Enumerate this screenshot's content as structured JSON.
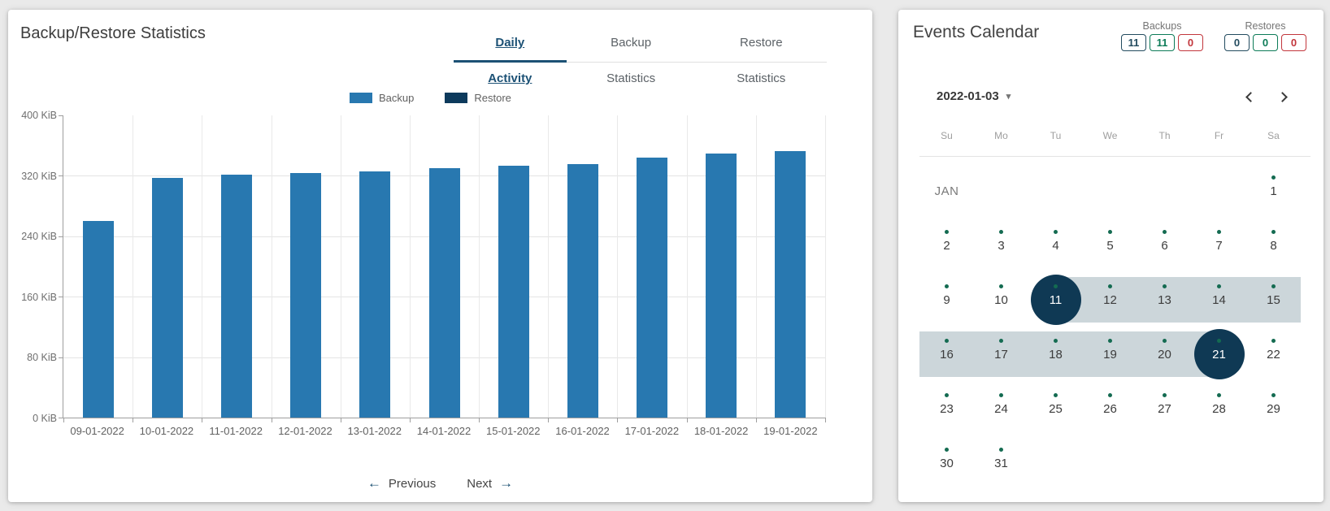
{
  "page_background": "#eaeaea",
  "left_panel": {
    "title": "Backup/Restore Statistics",
    "tabs": [
      {
        "label": "Daily Activity",
        "active": true
      },
      {
        "label": "Backup Statistics",
        "active": false
      },
      {
        "label": "Restore Statistics",
        "active": false
      }
    ],
    "pagination": {
      "previous": "Previous",
      "next": "Next"
    }
  },
  "chart_data": {
    "type": "bar",
    "title": "Daily Activity",
    "categories": [
      "09-01-2022",
      "10-01-2022",
      "11-01-2022",
      "12-01-2022",
      "13-01-2022",
      "14-01-2022",
      "15-01-2022",
      "16-01-2022",
      "17-01-2022",
      "18-01-2022",
      "19-01-2022"
    ],
    "series": [
      {
        "name": "Backup",
        "color": "#2878b0",
        "values": [
          260,
          317,
          321,
          324,
          326,
          330,
          333,
          336,
          344,
          350,
          353
        ]
      },
      {
        "name": "Restore",
        "color": "#0d3a5c",
        "values": [
          0,
          0,
          0,
          0,
          0,
          0,
          0,
          0,
          0,
          0,
          0
        ]
      }
    ],
    "unit": "KiB",
    "y_ticks": [
      "400 KiB",
      "320 KiB",
      "240 KiB",
      "160 KiB",
      "80 KiB",
      "0 KiB"
    ],
    "ylim": [
      0,
      400
    ],
    "grid": true,
    "legend_position": "top"
  },
  "right_panel": {
    "title": "Events Calendar",
    "counters": [
      {
        "group": "Backups",
        "badges": [
          {
            "value": "11",
            "color": "#234b5f"
          },
          {
            "value": "11",
            "color": "#0c7b57"
          },
          {
            "value": "0",
            "color": "#c2363c"
          }
        ]
      },
      {
        "group": "Restores",
        "badges": [
          {
            "value": "0",
            "color": "#234b5f"
          },
          {
            "value": "0",
            "color": "#0c7b57"
          },
          {
            "value": "0",
            "color": "#c2363c"
          }
        ]
      }
    ],
    "date_selector": {
      "value": "2022-01-03"
    },
    "calendar": {
      "month_label": "JAN",
      "weekdays": [
        "Su",
        "Mo",
        "Tu",
        "We",
        "Th",
        "Fr",
        "Sa"
      ],
      "selected_range": {
        "start": "2022-01-11",
        "end": "2022-01-21"
      },
      "rows": [
        [
          {
            "type": "month",
            "label": "JAN"
          },
          {
            "type": "empty"
          },
          {
            "type": "empty"
          },
          {
            "type": "empty"
          },
          {
            "type": "empty"
          },
          {
            "type": "empty"
          },
          {
            "type": "day",
            "day": 1,
            "dot": true,
            "state": "plain"
          }
        ],
        [
          {
            "type": "day",
            "day": 2,
            "dot": true,
            "state": "plain"
          },
          {
            "type": "day",
            "day": 3,
            "dot": true,
            "state": "plain"
          },
          {
            "type": "day",
            "day": 4,
            "dot": true,
            "state": "plain"
          },
          {
            "type": "day",
            "day": 5,
            "dot": true,
            "state": "plain"
          },
          {
            "type": "day",
            "day": 6,
            "dot": true,
            "state": "plain"
          },
          {
            "type": "day",
            "day": 7,
            "dot": true,
            "state": "plain"
          },
          {
            "type": "day",
            "day": 8,
            "dot": true,
            "state": "plain"
          }
        ],
        [
          {
            "type": "day",
            "day": 9,
            "dot": true,
            "state": "plain"
          },
          {
            "type": "day",
            "day": 10,
            "dot": true,
            "state": "plain"
          },
          {
            "type": "day",
            "day": 11,
            "dot": true,
            "state": "start"
          },
          {
            "type": "day",
            "day": 12,
            "dot": true,
            "state": "range"
          },
          {
            "type": "day",
            "day": 13,
            "dot": true,
            "state": "range"
          },
          {
            "type": "day",
            "day": 14,
            "dot": true,
            "state": "range"
          },
          {
            "type": "day",
            "day": 15,
            "dot": true,
            "state": "range"
          }
        ],
        [
          {
            "type": "day",
            "day": 16,
            "dot": true,
            "state": "range"
          },
          {
            "type": "day",
            "day": 17,
            "dot": true,
            "state": "range"
          },
          {
            "type": "day",
            "day": 18,
            "dot": true,
            "state": "range"
          },
          {
            "type": "day",
            "day": 19,
            "dot": true,
            "state": "range"
          },
          {
            "type": "day",
            "day": 20,
            "dot": true,
            "state": "range"
          },
          {
            "type": "day",
            "day": 21,
            "dot": true,
            "state": "end"
          },
          {
            "type": "day",
            "day": 22,
            "dot": true,
            "state": "plain"
          }
        ],
        [
          {
            "type": "day",
            "day": 23,
            "dot": true,
            "state": "plain"
          },
          {
            "type": "day",
            "day": 24,
            "dot": true,
            "state": "plain"
          },
          {
            "type": "day",
            "day": 25,
            "dot": true,
            "state": "plain"
          },
          {
            "type": "day",
            "day": 26,
            "dot": true,
            "state": "plain"
          },
          {
            "type": "day",
            "day": 27,
            "dot": true,
            "state": "plain"
          },
          {
            "type": "day",
            "day": 28,
            "dot": true,
            "state": "plain"
          },
          {
            "type": "day",
            "day": 29,
            "dot": true,
            "state": "plain"
          }
        ],
        [
          {
            "type": "day",
            "day": 30,
            "dot": true,
            "state": "plain"
          },
          {
            "type": "day",
            "day": 31,
            "dot": true,
            "state": "plain"
          },
          {
            "type": "empty"
          },
          {
            "type": "empty"
          },
          {
            "type": "empty"
          },
          {
            "type": "empty"
          },
          {
            "type": "empty"
          }
        ]
      ]
    }
  },
  "colors": {
    "bar_blue": "#2878b0",
    "restore_navy": "#0d3a5c",
    "tab_active_navy": "#1c5175",
    "selection_circle_navy": "#0f3954",
    "range_band_gray": "#ccd6da",
    "event_dot_green": "#146b51",
    "badge_navy": "#234b5f",
    "badge_green": "#0c7b57",
    "badge_red": "#c2363c"
  }
}
